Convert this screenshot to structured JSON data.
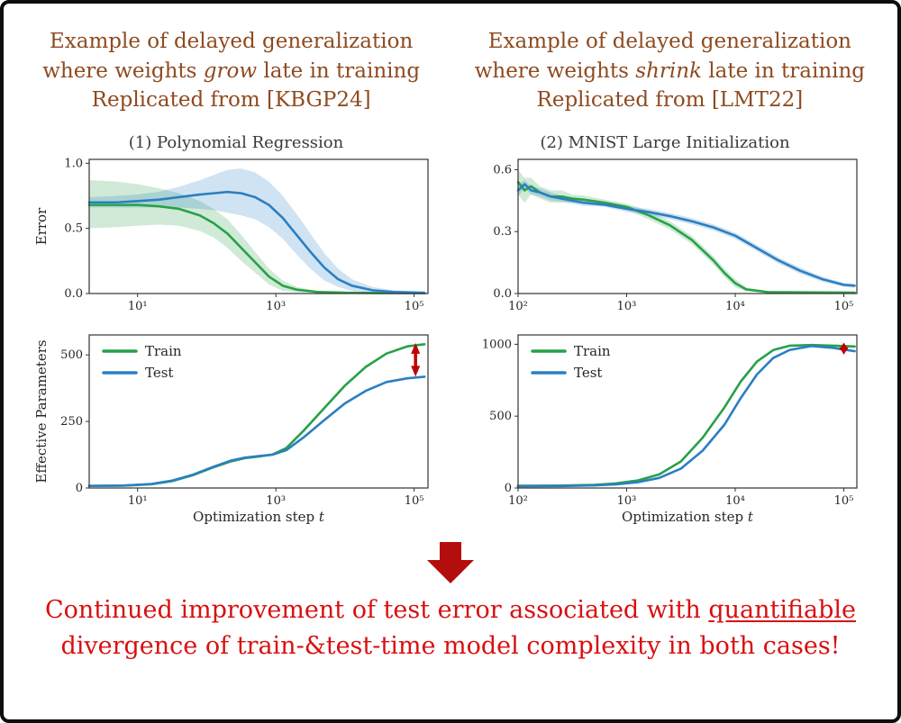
{
  "headers": {
    "color": "#8f4a1f",
    "left": {
      "line1": "Example of delayed generalization",
      "line2_pre": "where weights ",
      "line2_em": "grow",
      "line2_post": " late in training",
      "line3": "Replicated from [KBGP24]"
    },
    "right": {
      "line1": "Example of delayed generalization",
      "line2_pre": "where weights ",
      "line2_em": "shrink",
      "line2_post": " late in training",
      "line3": "Replicated from [LMT22]"
    }
  },
  "arrow": {
    "color": "#b30d0d"
  },
  "footer": {
    "color": "#d90f0f",
    "line1_pre": "Continued improvement of test error associated with ",
    "line1_underline": "quantifiable",
    "line2": "divergence of train-&test-time model complexity in both cases!"
  },
  "colors": {
    "train": "#27a148",
    "test": "#2b7fc2",
    "annotation": "#c00000"
  },
  "chart_data": [
    {
      "type": "line",
      "title": "(1) Polynomial Regression",
      "ylabel": "Error",
      "xscale": "log",
      "xlim_log10": [
        0.3,
        5.2
      ],
      "xticks_log10": [
        1,
        3,
        5
      ],
      "xtick_labels": [
        "10¹",
        "10³",
        "10⁵"
      ],
      "ylim": [
        0,
        1.03
      ],
      "yticks": [
        0,
        0.5,
        1.0
      ],
      "ytick_labels": [
        "0.0",
        "0.5",
        "1.0"
      ],
      "legend": false,
      "annotation_arrow": null,
      "series": [
        {
          "name": "Train",
          "color_key": "train",
          "x_log10": [
            0.3,
            0.7,
            1.0,
            1.3,
            1.6,
            1.9,
            2.1,
            2.3,
            2.5,
            2.7,
            2.9,
            3.1,
            3.3,
            3.6,
            4.0,
            4.5,
            5.15
          ],
          "y": [
            0.68,
            0.68,
            0.68,
            0.67,
            0.65,
            0.6,
            0.54,
            0.46,
            0.35,
            0.24,
            0.13,
            0.06,
            0.03,
            0.012,
            0.006,
            0.004,
            0.003
          ],
          "band_upper": [
            0.87,
            0.86,
            0.84,
            0.81,
            0.77,
            0.71,
            0.65,
            0.57,
            0.45,
            0.32,
            0.19,
            0.1,
            0.05,
            0.02,
            0.01,
            0.008,
            0.006
          ],
          "band_lower": [
            0.5,
            0.51,
            0.52,
            0.53,
            0.52,
            0.48,
            0.43,
            0.35,
            0.25,
            0.16,
            0.07,
            0.02,
            0.01,
            0.004,
            0.002,
            0.001,
            0.001
          ]
        },
        {
          "name": "Test",
          "color_key": "test",
          "x_log10": [
            0.3,
            0.7,
            1.0,
            1.3,
            1.6,
            1.9,
            2.1,
            2.3,
            2.5,
            2.7,
            2.9,
            3.1,
            3.3,
            3.5,
            3.7,
            3.9,
            4.1,
            4.4,
            4.7,
            5.15
          ],
          "y": [
            0.7,
            0.7,
            0.71,
            0.72,
            0.74,
            0.76,
            0.77,
            0.78,
            0.77,
            0.74,
            0.68,
            0.58,
            0.45,
            0.32,
            0.2,
            0.11,
            0.06,
            0.025,
            0.012,
            0.006
          ],
          "band_upper": [
            0.74,
            0.75,
            0.76,
            0.78,
            0.82,
            0.87,
            0.91,
            0.95,
            0.96,
            0.93,
            0.86,
            0.75,
            0.61,
            0.46,
            0.31,
            0.19,
            0.11,
            0.05,
            0.025,
            0.015
          ],
          "band_lower": [
            0.66,
            0.66,
            0.66,
            0.66,
            0.66,
            0.65,
            0.64,
            0.62,
            0.6,
            0.57,
            0.51,
            0.42,
            0.3,
            0.19,
            0.1,
            0.05,
            0.02,
            0.008,
            0.003,
            0.001
          ]
        }
      ]
    },
    {
      "type": "line",
      "title": "(2) MNIST Large Initialization",
      "ylabel": null,
      "xscale": "log",
      "xlim_log10": [
        2,
        5.12
      ],
      "xticks_log10": [
        2,
        3,
        4,
        5
      ],
      "xtick_labels": [
        "10²",
        "10³",
        "10⁴",
        "10⁵"
      ],
      "ylim": [
        0,
        0.65
      ],
      "yticks": [
        0,
        0.3,
        0.6
      ],
      "ytick_labels": [
        "0.0",
        "0.3",
        "0.6"
      ],
      "legend": false,
      "annotation_arrow": null,
      "series": [
        {
          "name": "Train",
          "color_key": "train",
          "x_log10": [
            2.0,
            2.06,
            2.12,
            2.2,
            2.3,
            2.4,
            2.5,
            2.6,
            2.8,
            3.0,
            3.2,
            3.4,
            3.6,
            3.8,
            3.9,
            4.0,
            4.1,
            4.3,
            5.1
          ],
          "y": [
            0.54,
            0.5,
            0.52,
            0.49,
            0.47,
            0.47,
            0.46,
            0.455,
            0.44,
            0.42,
            0.38,
            0.33,
            0.26,
            0.16,
            0.1,
            0.05,
            0.02,
            0.007,
            0.004
          ],
          "band_upper": [
            0.6,
            0.56,
            0.56,
            0.52,
            0.5,
            0.5,
            0.48,
            0.475,
            0.455,
            0.435,
            0.4,
            0.35,
            0.28,
            0.18,
            0.12,
            0.07,
            0.03,
            0.012,
            0.008
          ],
          "band_lower": [
            0.48,
            0.44,
            0.48,
            0.46,
            0.44,
            0.44,
            0.44,
            0.435,
            0.425,
            0.405,
            0.36,
            0.31,
            0.24,
            0.14,
            0.08,
            0.03,
            0.012,
            0.003,
            0.001
          ]
        },
        {
          "name": "Test",
          "color_key": "test",
          "x_log10": [
            2.0,
            2.06,
            2.12,
            2.2,
            2.3,
            2.4,
            2.5,
            2.6,
            2.8,
            3.0,
            3.2,
            3.4,
            3.6,
            3.8,
            4.0,
            4.2,
            4.4,
            4.6,
            4.8,
            5.0,
            5.1
          ],
          "y": [
            0.5,
            0.53,
            0.5,
            0.49,
            0.47,
            0.46,
            0.45,
            0.44,
            0.43,
            0.41,
            0.395,
            0.375,
            0.35,
            0.32,
            0.28,
            0.22,
            0.16,
            0.11,
            0.07,
            0.042,
            0.038
          ],
          "band_upper": [
            0.53,
            0.55,
            0.52,
            0.51,
            0.49,
            0.475,
            0.465,
            0.455,
            0.44,
            0.425,
            0.41,
            0.39,
            0.365,
            0.335,
            0.295,
            0.235,
            0.175,
            0.125,
            0.082,
            0.052,
            0.048
          ],
          "band_lower": [
            0.47,
            0.51,
            0.48,
            0.47,
            0.45,
            0.445,
            0.435,
            0.425,
            0.42,
            0.395,
            0.38,
            0.36,
            0.335,
            0.305,
            0.265,
            0.205,
            0.145,
            0.095,
            0.058,
            0.032,
            0.028
          ]
        }
      ]
    },
    {
      "type": "line",
      "title": null,
      "ylabel": "Effective Parameters",
      "xlabel": "Optimization step ",
      "xlabel_em": "t",
      "xscale": "log",
      "xlim_log10": [
        0.3,
        5.2
      ],
      "xticks_log10": [
        1,
        3,
        5
      ],
      "xtick_labels": [
        "10¹",
        "10³",
        "10⁵"
      ],
      "ylim": [
        0,
        575
      ],
      "yticks": [
        0,
        250,
        500
      ],
      "ytick_labels": [
        "0",
        "250",
        "500"
      ],
      "legend": true,
      "annotation_arrow": {
        "x_log10": 5.02,
        "y_from": 418,
        "y_to": 545
      },
      "series": [
        {
          "name": "Train",
          "color_key": "train",
          "x_log10": [
            0.3,
            0.8,
            1.2,
            1.5,
            1.8,
            2.1,
            2.35,
            2.55,
            2.75,
            2.95,
            3.15,
            3.4,
            3.7,
            4.0,
            4.3,
            4.6,
            4.9,
            5.15
          ],
          "y": [
            8,
            9,
            14,
            26,
            48,
            78,
            100,
            112,
            118,
            126,
            150,
            215,
            300,
            385,
            455,
            505,
            532,
            540
          ]
        },
        {
          "name": "Test",
          "color_key": "test",
          "x_log10": [
            0.3,
            0.8,
            1.2,
            1.5,
            1.8,
            2.1,
            2.35,
            2.55,
            2.75,
            2.95,
            3.15,
            3.4,
            3.7,
            4.0,
            4.3,
            4.6,
            4.9,
            5.15
          ],
          "y": [
            8,
            9,
            15,
            28,
            50,
            80,
            103,
            114,
            120,
            125,
            142,
            190,
            255,
            318,
            365,
            398,
            412,
            418
          ]
        }
      ]
    },
    {
      "type": "line",
      "title": null,
      "ylabel": null,
      "xlabel": "Optimization step ",
      "xlabel_em": "t",
      "xscale": "log",
      "xlim_log10": [
        2,
        5.12
      ],
      "xticks_log10": [
        2,
        3,
        4,
        5
      ],
      "xtick_labels": [
        "10²",
        "10³",
        "10⁴",
        "10⁵"
      ],
      "ylim": [
        0,
        1065
      ],
      "yticks": [
        0,
        500,
        1000
      ],
      "ytick_labels": [
        "0",
        "500",
        "1000"
      ],
      "legend": true,
      "annotation_arrow": {
        "x_log10": 5.0,
        "y_from": 928,
        "y_to": 1012
      },
      "series": [
        {
          "name": "Train",
          "color_key": "train",
          "x_log10": [
            2.0,
            2.4,
            2.7,
            2.9,
            3.1,
            3.3,
            3.5,
            3.7,
            3.9,
            4.05,
            4.2,
            4.35,
            4.5,
            4.7,
            4.9,
            5.1
          ],
          "y": [
            15,
            17,
            22,
            32,
            52,
            95,
            185,
            350,
            560,
            740,
            880,
            960,
            990,
            995,
            990,
            985
          ]
        },
        {
          "name": "Test",
          "color_key": "test",
          "x_log10": [
            2.0,
            2.4,
            2.7,
            2.9,
            3.1,
            3.3,
            3.5,
            3.7,
            3.9,
            4.05,
            4.2,
            4.35,
            4.5,
            4.7,
            4.9,
            5.1
          ],
          "y": [
            12,
            14,
            18,
            25,
            40,
            70,
            135,
            260,
            440,
            625,
            790,
            905,
            960,
            988,
            975,
            952
          ]
        }
      ]
    }
  ]
}
